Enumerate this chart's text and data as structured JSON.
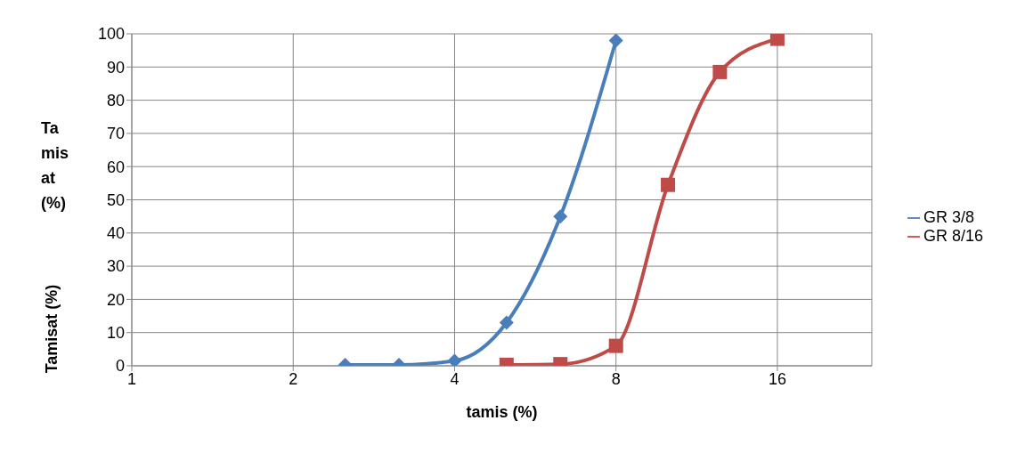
{
  "chart_data": {
    "type": "line",
    "xlabel": "tamis (%)",
    "ylabel": "Tamisat (%)",
    "annotations": [
      "Tamisat (%)"
    ],
    "log": "x",
    "xlim": [
      1,
      24
    ],
    "xticks": [
      1,
      2,
      4,
      8,
      16
    ],
    "ylim": [
      0,
      100
    ],
    "yticks": [
      0,
      10,
      20,
      30,
      40,
      50,
      60,
      70,
      80,
      90,
      100
    ],
    "grid": true,
    "legend": "right",
    "line_style": "solid",
    "series": [
      {
        "name": "GR 3/8",
        "color": "#4a7ebb",
        "marker": "diamond",
        "x": [
          2.5,
          3.15,
          4,
          5,
          6.3,
          8
        ],
        "values": [
          0.3,
          0.3,
          1.5,
          13,
          45,
          98
        ]
      },
      {
        "name": "GR 8/16",
        "color": "#be4b48",
        "marker": "square",
        "x": [
          5,
          6.3,
          8,
          10,
          12.5,
          16
        ],
        "values": [
          0.3,
          0.5,
          6,
          54.5,
          88.5,
          98.5
        ]
      }
    ]
  }
}
